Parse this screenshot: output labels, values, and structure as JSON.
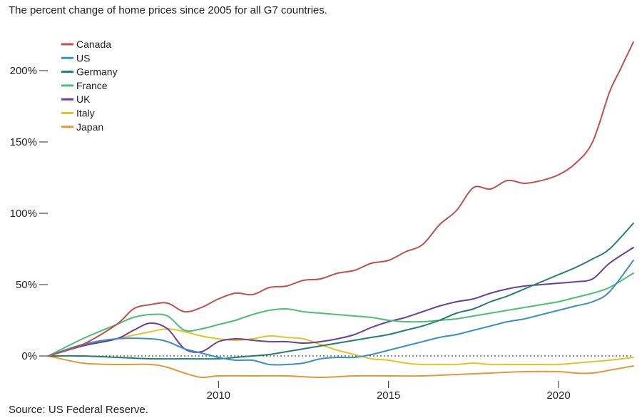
{
  "title": "The percent change of home prices since 2005 for all G7 countries.",
  "source": "Source: US Federal Reserve.",
  "chart_data": {
    "type": "line",
    "title": "The percent change of home prices since 2005 for all G7 countries.",
    "xlabel": "",
    "ylabel": "",
    "xlim": [
      2005,
      2022.2
    ],
    "ylim": [
      -25,
      225
    ],
    "x_ticks": [
      2010,
      2015,
      2020
    ],
    "x_tick_labels": [
      "2010",
      "2015",
      "2020"
    ],
    "y_ticks": [
      0,
      50,
      100,
      150,
      200
    ],
    "y_tick_labels": [
      "0%",
      "50%",
      "100%",
      "150%",
      "200%"
    ],
    "zero_line": "dotted",
    "grid": false,
    "legend_position": "top-left",
    "series": [
      {
        "name": "Canada",
        "color": "#c0504d",
        "x": [
          2005,
          2006,
          2007,
          2007.5,
          2008,
          2008.5,
          2009,
          2009.5,
          2010,
          2010.5,
          2011,
          2011.5,
          2012,
          2012.5,
          2013,
          2013.5,
          2014,
          2014.5,
          2015,
          2015.5,
          2016,
          2016.5,
          2017,
          2017.5,
          2018,
          2018.5,
          2019,
          2019.5,
          2020,
          2020.5,
          2021,
          2021.5,
          2021.8,
          2022.2
        ],
        "y": [
          0,
          8,
          22,
          33,
          36,
          37,
          31,
          34,
          40,
          44,
          43,
          48,
          49,
          53,
          54,
          58,
          60,
          65,
          67,
          73,
          78,
          92,
          102,
          118,
          117,
          123,
          121,
          123,
          127,
          135,
          150,
          185,
          200,
          220
        ]
      },
      {
        "name": "US",
        "color": "#3b8fc4",
        "x": [
          2005,
          2006,
          2007,
          2008,
          2008.5,
          2009,
          2009.5,
          2010,
          2010.5,
          2011,
          2011.5,
          2012,
          2012.5,
          2013,
          2013.5,
          2014,
          2014.5,
          2015,
          2015.5,
          2016,
          2016.5,
          2017,
          2017.5,
          2018,
          2018.5,
          2019,
          2019.5,
          2020,
          2020.5,
          2021,
          2021.5,
          2022.2
        ],
        "y": [
          0,
          8,
          12,
          12,
          10,
          5,
          2,
          -1,
          -3,
          -3,
          -6,
          -6,
          -5,
          -2,
          -1,
          -1,
          1,
          4,
          7,
          10,
          13,
          15,
          18,
          21,
          24,
          26,
          29,
          32,
          35,
          38,
          45,
          67
        ]
      },
      {
        "name": "Germany",
        "color": "#227f6e",
        "x": [
          2005,
          2006,
          2007,
          2008,
          2009,
          2010,
          2010.5,
          2011,
          2011.5,
          2012,
          2012.5,
          2013,
          2013.5,
          2014,
          2014.5,
          2015,
          2015.5,
          2016,
          2016.5,
          2017,
          2017.5,
          2018,
          2018.5,
          2019,
          2019.5,
          2020,
          2020.5,
          2021,
          2021.5,
          2022.2
        ],
        "y": [
          0,
          0,
          -1,
          -2,
          -2,
          -2,
          -1,
          0,
          1,
          3,
          5,
          7,
          9,
          11,
          13,
          15,
          18,
          21,
          25,
          30,
          33,
          38,
          42,
          47,
          52,
          57,
          62,
          68,
          75,
          93
        ]
      },
      {
        "name": "France",
        "color": "#4bbf73",
        "x": [
          2005,
          2006,
          2007,
          2007.5,
          2008,
          2008.5,
          2009,
          2009.5,
          2010,
          2010.5,
          2011,
          2011.5,
          2012,
          2012.5,
          2013,
          2013.5,
          2014,
          2014.5,
          2015,
          2015.5,
          2016,
          2016.5,
          2017,
          2017.5,
          2018,
          2018.5,
          2019,
          2019.5,
          2020,
          2020.5,
          2021,
          2021.5,
          2022.2
        ],
        "y": [
          0,
          12,
          22,
          27,
          29,
          28,
          18,
          19,
          22,
          25,
          29,
          32,
          33,
          31,
          30,
          29,
          28,
          27,
          25,
          24,
          24,
          25,
          26,
          28,
          30,
          32,
          34,
          36,
          38,
          41,
          44,
          48,
          58
        ]
      },
      {
        "name": "UK",
        "color": "#6b3f98",
        "x": [
          2005,
          2006,
          2007,
          2007.5,
          2008,
          2008.5,
          2009,
          2009.5,
          2010,
          2010.5,
          2011,
          2011.5,
          2012,
          2012.5,
          2013,
          2013.5,
          2014,
          2014.5,
          2015,
          2015.5,
          2016,
          2016.5,
          2017,
          2017.5,
          2018,
          2018.5,
          2019,
          2019.5,
          2020,
          2020.5,
          2021,
          2021.5,
          2022.2
        ],
        "y": [
          0,
          7,
          12,
          18,
          23,
          19,
          5,
          3,
          10,
          12,
          11,
          10,
          10,
          9,
          10,
          12,
          15,
          20,
          24,
          27,
          31,
          35,
          38,
          40,
          44,
          47,
          49,
          50,
          51,
          52,
          54,
          65,
          76
        ]
      },
      {
        "name": "Italy",
        "color": "#e6c229",
        "x": [
          2005,
          2006,
          2007,
          2008,
          2008.5,
          2009,
          2009.5,
          2010,
          2010.5,
          2011,
          2011.5,
          2012,
          2012.5,
          2013,
          2013.5,
          2014,
          2014.5,
          2015,
          2015.5,
          2016,
          2016.5,
          2017,
          2017.5,
          2018,
          2018.5,
          2019,
          2019.5,
          2020,
          2020.5,
          2021,
          2021.5,
          2022.2
        ],
        "y": [
          0,
          7,
          12,
          17,
          19,
          17,
          14,
          12,
          11,
          12,
          14,
          13,
          12,
          8,
          4,
          1,
          -2,
          -3,
          -5,
          -6,
          -6,
          -6,
          -5,
          -6,
          -6,
          -6,
          -6,
          -6,
          -5,
          -4,
          -3,
          -1
        ]
      },
      {
        "name": "Japan",
        "color": "#e09a3a",
        "x": [
          2005,
          2006,
          2007,
          2008,
          2008.5,
          2009,
          2009.5,
          2010,
          2011,
          2012,
          2013,
          2014,
          2015,
          2016,
          2017,
          2018,
          2019,
          2020,
          2020.5,
          2021,
          2021.5,
          2022.2
        ],
        "y": [
          0,
          -5,
          -6,
          -6,
          -8,
          -12,
          -15,
          -14,
          -14,
          -14,
          -15,
          -14,
          -14,
          -14,
          -13,
          -12,
          -11,
          -11,
          -12,
          -12,
          -10,
          -7
        ]
      }
    ]
  }
}
